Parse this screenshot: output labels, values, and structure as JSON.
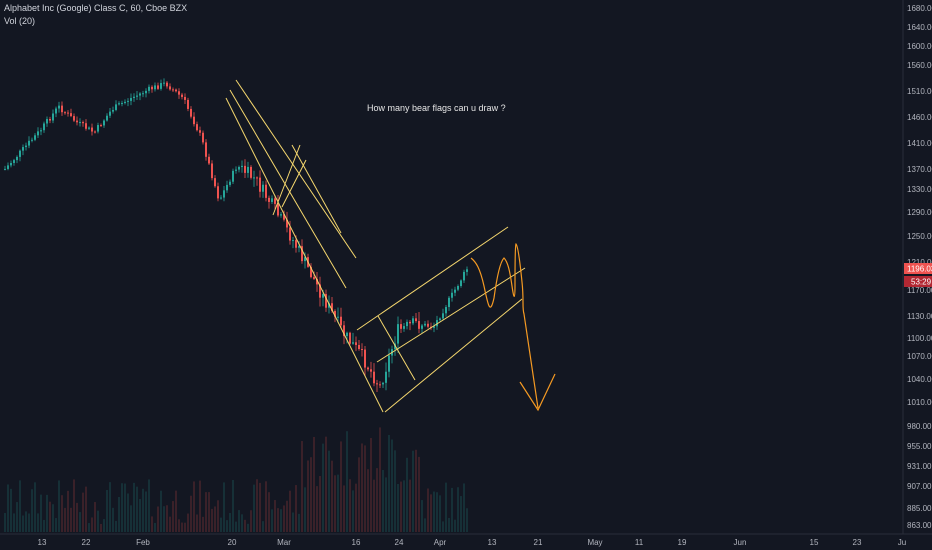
{
  "header": {
    "title": "Alphabet Inc (Google) Class C, 60, Cboe BZX",
    "volume_label": "Vol (20)"
  },
  "annotation": "How many bear flags can u draw ?",
  "price_tags": {
    "last_price": "1196.03",
    "countdown": "53:29"
  },
  "colors": {
    "up": "#26a69a",
    "down": "#ef5350",
    "drawing": "#f5d76e",
    "projection": "#f59a23",
    "price_tag": "#ef5350",
    "background": "#131722"
  },
  "chart_data": {
    "type": "candlestick",
    "y_axis_ticks": [
      "1680.00",
      "1640.00",
      "1600.00",
      "1560.00",
      "1510.00",
      "1460.00",
      "1410.00",
      "1370.00",
      "1330.00",
      "1290.00",
      "1250.00",
      "1210.00",
      "1170.00",
      "1130.00",
      "1100.00",
      "1070.00",
      "1040.00",
      "1010.00",
      "980.00",
      "955.00",
      "931.00",
      "907.00",
      "885.00",
      "863.00"
    ],
    "x_axis_ticks": [
      "13",
      "22",
      "Feb",
      "20",
      "Mar",
      "16",
      "24",
      "Apr",
      "13",
      "21",
      "May",
      "11",
      "19",
      "Jun",
      "15",
      "23",
      "Ju"
    ],
    "ylim": [
      863,
      1680
    ],
    "price_path": [
      {
        "x": "Jan 9",
        "y": 1370
      },
      {
        "x": "Jan 13",
        "y": 1400
      },
      {
        "x": "Jan 17",
        "y": 1435
      },
      {
        "x": "Jan 22",
        "y": 1480
      },
      {
        "x": "Jan 27",
        "y": 1450
      },
      {
        "x": "Jan 31",
        "y": 1430
      },
      {
        "x": "Feb 4",
        "y": 1475
      },
      {
        "x": "Feb 10",
        "y": 1495
      },
      {
        "x": "Feb 14",
        "y": 1512
      },
      {
        "x": "Feb 19",
        "y": 1525
      },
      {
        "x": "Feb 21",
        "y": 1495
      },
      {
        "x": "Feb 25",
        "y": 1420
      },
      {
        "x": "Feb 27",
        "y": 1310
      },
      {
        "x": "Mar 2",
        "y": 1375
      },
      {
        "x": "Mar 4",
        "y": 1350
      },
      {
        "x": "Mar 6",
        "y": 1300
      },
      {
        "x": "Mar 9",
        "y": 1250
      },
      {
        "x": "Mar 12",
        "y": 1200
      },
      {
        "x": "Mar 14",
        "y": 1150
      },
      {
        "x": "Mar 17",
        "y": 1105
      },
      {
        "x": "Mar 20",
        "y": 1070
      },
      {
        "x": "Mar 23",
        "y": 1030
      },
      {
        "x": "Mar 26",
        "y": 1110
      },
      {
        "x": "Mar 30",
        "y": 1120
      },
      {
        "x": "Apr 2",
        "y": 1115
      },
      {
        "x": "Apr 6",
        "y": 1160
      },
      {
        "x": "Apr 9",
        "y": 1205
      }
    ],
    "grid": false,
    "legend": "none"
  }
}
